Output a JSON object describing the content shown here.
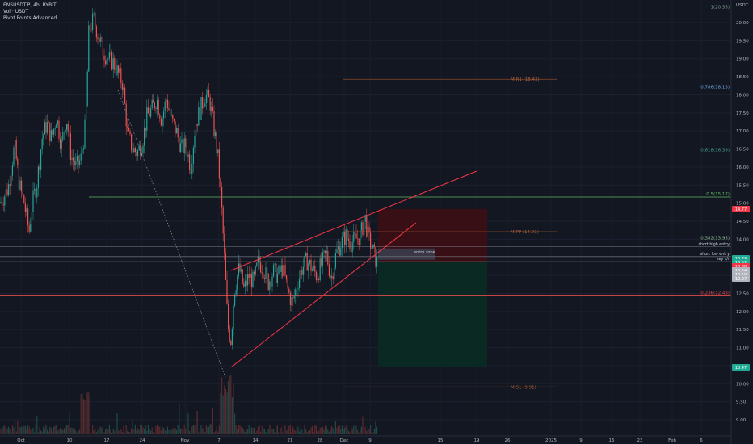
{
  "header": {
    "symbol_line": "ENSUSDT.P, 4h, BYBIT",
    "volume_label": "Vol · USDT",
    "indicator_label": "Pivot Points Advanced"
  },
  "price_axis": {
    "unit": "USDT"
  },
  "chart_data": {
    "type": "candlestick",
    "ylim": [
      8.5,
      20.6
    ],
    "y_ticks": [
      "20.00",
      "19.50",
      "19.00",
      "18.50",
      "18.00",
      "17.50",
      "17.00",
      "16.50",
      "16.00",
      "15.50",
      "15.00",
      "14.50",
      "14.00",
      "13.50",
      "13.00",
      "12.50",
      "12.00",
      "11.50",
      "11.00",
      "10.50",
      "10.00",
      "9.50",
      "9.00"
    ],
    "x_ticks": [
      "Oct",
      "10",
      "17",
      "24",
      "Nov",
      "7",
      "14",
      "21",
      "28",
      "Dec",
      "9",
      "15",
      "19",
      "26",
      "2025",
      "9",
      "16",
      "23",
      "Feb",
      "6"
    ],
    "fib_levels": [
      {
        "label": "1(20.35)",
        "value": 20.35,
        "color": "#7b9e89"
      },
      {
        "label": "0.786(18.13)",
        "value": 18.13,
        "color": "#6fa8dc"
      },
      {
        "label": "0.618(16.39)",
        "value": 16.39,
        "color": "#4a9e8a"
      },
      {
        "label": "0.5(15.17)",
        "value": 15.17,
        "color": "#5cb85c"
      },
      {
        "label": "0.382(13.95)",
        "value": 13.95,
        "color": "#8fbc8f"
      },
      {
        "label": "0.236(12.43)",
        "value": 12.43,
        "color": "#e04b4b"
      }
    ],
    "pivots": [
      {
        "label": "M R1 (18.43)",
        "value": 18.43
      },
      {
        "label": "M PP (14.21)",
        "value": 14.21
      },
      {
        "label": "M S1 (9.91)",
        "value": 9.91
      }
    ],
    "horizontal_levels": [
      {
        "label": "short high entry",
        "value": 13.79
      },
      {
        "label": "short low entry",
        "value": 13.52
      },
      {
        "label": "key s/r",
        "value": 13.38
      }
    ],
    "entry_zone_label": "entry zone",
    "price_badges": [
      {
        "text": "14.77",
        "color": "#f23645"
      },
      {
        "text": "13.79",
        "color": "#22ab94"
      },
      {
        "text": "13.52",
        "color": "#22ab94"
      },
      {
        "text": "13.38",
        "color": "#f23645"
      },
      {
        "text": "13.24",
        "color": "#b2b5be"
      },
      {
        "text": "13.10",
        "color": "#b2b5be"
      },
      {
        "text": "12.97",
        "color": "#b2b5be"
      },
      {
        "text": "10.47",
        "color": "#22ab94"
      }
    ],
    "trade": {
      "entry": 13.38,
      "stop": 14.77,
      "target": 10.47
    },
    "wedge": {
      "upper": [
        [
          286,
          335
        ],
        [
          590,
          212
        ]
      ],
      "lower": [
        [
          286,
          455
        ],
        [
          515,
          276
        ]
      ]
    },
    "dotted_line": [
      [
        146,
        112
      ],
      [
        280,
        470
      ]
    ],
    "price_path": [
      [
        0,
        15.0
      ],
      [
        10,
        15.4
      ],
      [
        18,
        16.6
      ],
      [
        24,
        15.5
      ],
      [
        30,
        15.0
      ],
      [
        36,
        14.2
      ],
      [
        40,
        15.0
      ],
      [
        46,
        15.6
      ],
      [
        52,
        16.8
      ],
      [
        58,
        17.2
      ],
      [
        64,
        16.8
      ],
      [
        70,
        17.4
      ],
      [
        76,
        16.6
      ],
      [
        82,
        17.4
      ],
      [
        88,
        16.3
      ],
      [
        94,
        16.0
      ],
      [
        100,
        16.2
      ],
      [
        106,
        17.2
      ],
      [
        110,
        19.8
      ],
      [
        116,
        20.1
      ],
      [
        122,
        19.6
      ],
      [
        128,
        19.2
      ],
      [
        134,
        19.0
      ],
      [
        140,
        18.9
      ],
      [
        146,
        18.6
      ],
      [
        152,
        18.3
      ],
      [
        158,
        16.9
      ],
      [
        164,
        16.5
      ],
      [
        170,
        16.4
      ],
      [
        176,
        16.7
      ],
      [
        182,
        17.4
      ],
      [
        188,
        17.6
      ],
      [
        194,
        17.9
      ],
      [
        200,
        17.3
      ],
      [
        206,
        17.9
      ],
      [
        212,
        17.3
      ],
      [
        218,
        17.0
      ],
      [
        224,
        16.5
      ],
      [
        230,
        16.6
      ],
      [
        236,
        16.0
      ],
      [
        242,
        17.2
      ],
      [
        248,
        17.6
      ],
      [
        254,
        18.0
      ],
      [
        260,
        17.8
      ],
      [
        266,
        16.9
      ],
      [
        270,
        16.2
      ],
      [
        274,
        15.0
      ],
      [
        278,
        13.4
      ],
      [
        282,
        11.6
      ],
      [
        286,
        11.2
      ],
      [
        290,
        12.6
      ],
      [
        296,
        13.2
      ],
      [
        302,
        12.6
      ],
      [
        308,
        13.0
      ],
      [
        314,
        12.8
      ],
      [
        320,
        13.4
      ],
      [
        326,
        13.2
      ],
      [
        332,
        12.8
      ],
      [
        338,
        13.1
      ],
      [
        344,
        13.0
      ],
      [
        350,
        13.2
      ],
      [
        356,
        12.6
      ],
      [
        362,
        12.2
      ],
      [
        368,
        12.8
      ],
      [
        374,
        13.2
      ],
      [
        380,
        13.4
      ],
      [
        386,
        13.2
      ],
      [
        392,
        13.0
      ],
      [
        398,
        13.3
      ],
      [
        404,
        13.6
      ],
      [
        410,
        12.9
      ],
      [
        416,
        13.6
      ],
      [
        422,
        13.9
      ],
      [
        428,
        14.1
      ],
      [
        434,
        13.9
      ],
      [
        440,
        14.0
      ],
      [
        446,
        14.1
      ],
      [
        452,
        14.6
      ],
      [
        456,
        14.0
      ],
      [
        460,
        13.8
      ],
      [
        464,
        13.5
      ],
      [
        468,
        13.3
      ]
    ]
  }
}
